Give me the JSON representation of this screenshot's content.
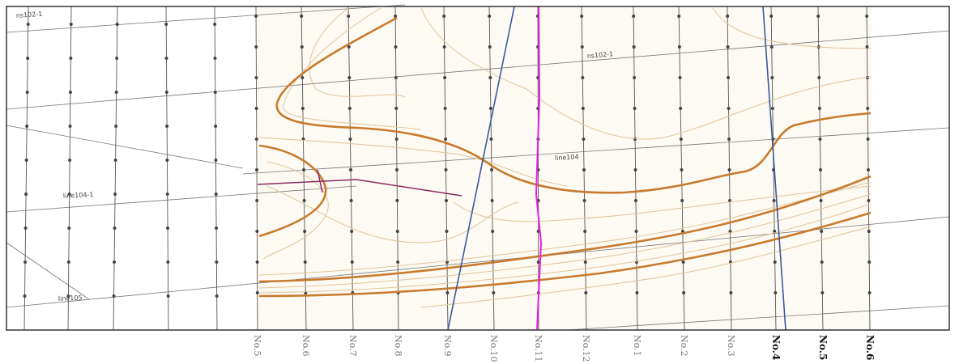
{
  "map": {
    "section_labels": [
      "No.5",
      "No.6",
      "No.7",
      "No.8",
      "No.9",
      "No.10",
      "No.11",
      "No.12",
      "No.1",
      "No.2",
      "No.3",
      "No.4",
      "No.5",
      "No.6"
    ],
    "line_labels": [
      "ns102-1",
      "ns102-1",
      "line104",
      "line104-1",
      "line105"
    ]
  }
}
